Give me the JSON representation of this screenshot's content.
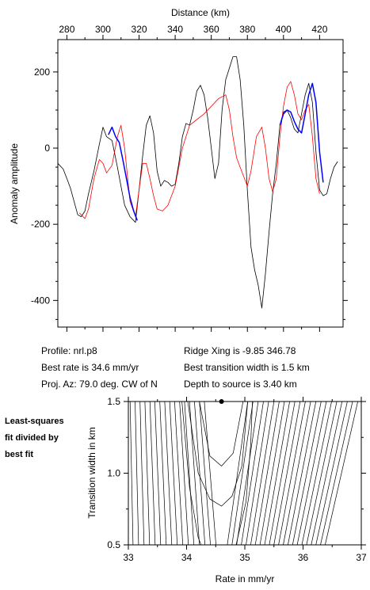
{
  "chart_data": [
    {
      "type": "line",
      "title": "",
      "xlabel": "Distance (km)",
      "ylabel": "Anomaly amplitude",
      "xlim": [
        275,
        433
      ],
      "ylim": [
        -470,
        285
      ],
      "xticks": [
        280,
        300,
        320,
        340,
        360,
        380,
        400,
        420
      ],
      "yticks": [
        200,
        0,
        -200,
        -400
      ],
      "x_axis_position": "top",
      "grid": false,
      "series": [
        {
          "color": "#000000",
          "x": [
            275,
            278,
            280,
            282,
            284,
            286,
            288,
            290,
            292,
            295,
            298,
            300,
            302,
            305,
            308,
            310,
            312,
            315,
            318,
            320,
            322,
            324,
            326,
            328,
            330,
            332,
            334,
            336,
            338,
            340,
            342,
            344,
            346,
            348,
            350,
            352,
            354,
            356,
            358,
            360,
            362,
            364,
            366,
            368,
            370,
            372,
            374,
            376,
            378,
            380,
            382,
            384,
            386,
            388,
            390,
            392,
            394,
            396,
            398,
            400,
            402,
            404,
            406,
            408,
            410,
            412,
            414,
            416,
            418,
            420,
            422,
            424,
            426,
            428,
            430
          ],
          "y": [
            -40,
            -55,
            -80,
            -105,
            -140,
            -175,
            -180,
            -165,
            -120,
            -60,
            10,
            55,
            30,
            20,
            -50,
            -100,
            -150,
            -180,
            -195,
            -110,
            -20,
            60,
            85,
            40,
            -60,
            -100,
            -85,
            -90,
            -100,
            -95,
            -40,
            30,
            65,
            60,
            100,
            150,
            165,
            140,
            80,
            0,
            -80,
            -40,
            100,
            180,
            210,
            240,
            240,
            180,
            60,
            -110,
            -260,
            -320,
            -360,
            -420,
            -330,
            -220,
            -120,
            -40,
            60,
            95,
            100,
            80,
            50,
            40,
            90,
            140,
            170,
            120,
            -10,
            -110,
            -125,
            -120,
            -80,
            -50,
            -35
          ]
        },
        {
          "color": "#ff0000",
          "x": [
            287,
            290,
            292,
            295,
            298,
            300,
            302,
            305,
            308,
            310,
            312,
            315,
            318,
            320,
            322,
            324,
            326,
            328,
            330,
            333,
            336,
            340,
            344,
            348,
            352,
            356,
            360,
            364,
            368,
            370,
            372,
            374,
            376,
            378,
            380,
            382,
            385,
            388,
            390,
            392,
            394,
            396,
            398,
            400,
            402,
            404,
            406,
            408,
            410,
            412,
            414,
            416,
            418,
            420
          ],
          "y": [
            -170,
            -185,
            -160,
            -80,
            -30,
            -40,
            -65,
            -45,
            30,
            60,
            0,
            -140,
            -180,
            -110,
            -40,
            -40,
            -80,
            -125,
            -160,
            -165,
            -150,
            -100,
            0,
            60,
            75,
            90,
            110,
            130,
            140,
            100,
            30,
            -25,
            -50,
            -75,
            -100,
            -60,
            30,
            55,
            0,
            -80,
            -115,
            -80,
            30,
            110,
            160,
            175,
            140,
            90,
            75,
            100,
            115,
            30,
            -80,
            -120
          ]
        },
        {
          "color": "#0000ff",
          "x": [
            303,
            305,
            307,
            309,
            311,
            313,
            315,
            317,
            319,
            398,
            400,
            402,
            404,
            406,
            408,
            410,
            412,
            414,
            416,
            418,
            420,
            422
          ],
          "y": [
            35,
            55,
            30,
            15,
            -30,
            -80,
            -130,
            -165,
            -190,
            60,
            90,
            100,
            95,
            70,
            50,
            40,
            90,
            140,
            170,
            120,
            -10,
            -90
          ]
        }
      ]
    },
    {
      "type": "line",
      "title": "",
      "xlabel": "Rate in mm/yr",
      "ylabel": "Transition width in km",
      "xlim": [
        33,
        37
      ],
      "ylim": [
        0.5,
        1.5
      ],
      "xticks": [
        33,
        34,
        35,
        36,
        37
      ],
      "yticks": [
        0.5,
        1.0,
        1.5
      ],
      "grid": false,
      "best_fit_marker": {
        "x": 34.6,
        "y": 1.5
      },
      "series": []
    }
  ],
  "info": {
    "profile": "Profile: nrl.p8",
    "best_rate": "Best rate is 34.6 mm/yr",
    "proj_az": "Proj. Az: 79.0 deg. CW of N",
    "ridge_xing": "Ridge Xing is -9.85 346.78",
    "best_width": "Best transition width is 1.5 km",
    "depth": "Depth to source is   3.40 km"
  },
  "side_note": [
    "Least-squares",
    "fit divided by",
    "best fit"
  ]
}
